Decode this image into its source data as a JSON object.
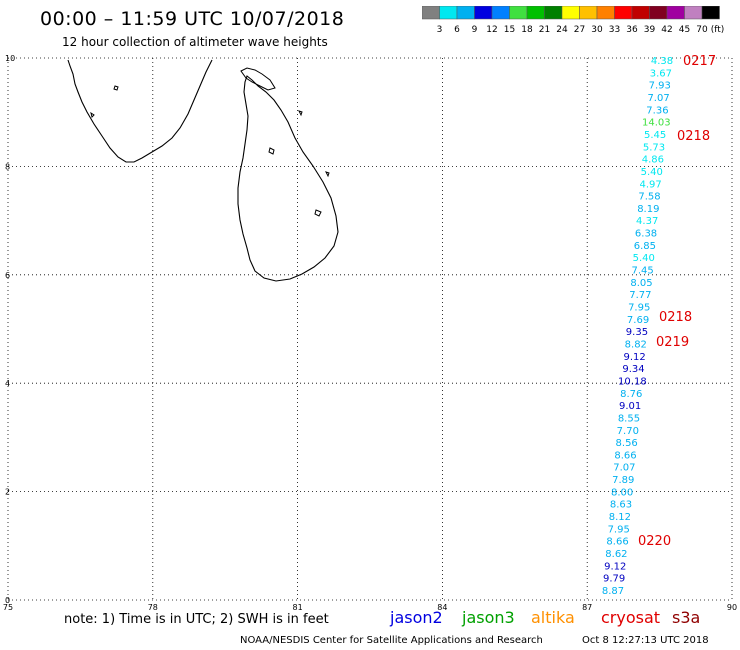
{
  "header": {
    "title": "00:00 – 11:59 UTC 10/07/2018",
    "subtitle": "12 hour collection of altimeter wave heights"
  },
  "colorbar": {
    "colors": [
      "#808080",
      "#00e8f0",
      "#00b0f0",
      "#0000e0",
      "#0080ff",
      "#40e040",
      "#00c000",
      "#008000",
      "#ffff00",
      "#ffc000",
      "#ff8000",
      "#ff0000",
      "#c00000",
      "#800020",
      "#a000a0",
      "#c080c0",
      "#000000"
    ],
    "labels": [
      "3",
      "6",
      "9",
      "12",
      "15",
      "18",
      "21",
      "24",
      "27",
      "30",
      "33",
      "36",
      "39",
      "42",
      "45",
      "70"
    ],
    "unit": "(ft)"
  },
  "map": {
    "lon_range": [
      75,
      90
    ],
    "lat_range": [
      0,
      10
    ],
    "x_ticks": [
      "75",
      "78",
      "81",
      "84",
      "87",
      "90"
    ],
    "y_ticks": [
      "0",
      "2",
      "4",
      "6",
      "8",
      "10"
    ],
    "grid": "dotted",
    "coastline": "Sri Lanka and southern India",
    "track_points": [
      {
        "label": "4.38",
        "color": "#00e8f0"
      },
      {
        "label": "3.67",
        "color": "#00e8f0"
      },
      {
        "label": "7.93",
        "color": "#00b0f0"
      },
      {
        "label": "7.07",
        "color": "#00b0f0"
      },
      {
        "label": "7.36",
        "color": "#00b0f0"
      },
      {
        "label": "14.03",
        "color": "#40e040"
      },
      {
        "label": "5.45",
        "color": "#00e8f0"
      },
      {
        "label": "5.73",
        "color": "#00e8f0"
      },
      {
        "label": "4.86",
        "color": "#00e8f0"
      },
      {
        "label": "5.40",
        "color": "#00e8f0"
      },
      {
        "label": "4.97",
        "color": "#00e8f0"
      },
      {
        "label": "7.58",
        "color": "#00b0f0"
      },
      {
        "label": "8.19",
        "color": "#00b0f0"
      },
      {
        "label": "4.37",
        "color": "#00e8f0"
      },
      {
        "label": "6.38",
        "color": "#00b0f0"
      },
      {
        "label": "6.85",
        "color": "#00b0f0"
      },
      {
        "label": "5.40",
        "color": "#00e8f0"
      },
      {
        "label": "7.45",
        "color": "#00b0f0"
      },
      {
        "label": "8.05",
        "color": "#00b0f0"
      },
      {
        "label": "7.77",
        "color": "#00b0f0"
      },
      {
        "label": "7.95",
        "color": "#00b0f0"
      },
      {
        "label": "7.69",
        "color": "#00b0f0"
      },
      {
        "label": "9.35",
        "color": "#0000c0"
      },
      {
        "label": "8.82",
        "color": "#00b0f0"
      },
      {
        "label": "9.12",
        "color": "#0000c0"
      },
      {
        "label": "9.34",
        "color": "#0000c0"
      },
      {
        "label": "10.18",
        "color": "#0000c0"
      },
      {
        "label": "8.76",
        "color": "#00b0f0"
      },
      {
        "label": "9.01",
        "color": "#0000c0"
      },
      {
        "label": "8.55",
        "color": "#00b0f0"
      },
      {
        "label": "7.70",
        "color": "#00b0f0"
      },
      {
        "label": "8.56",
        "color": "#00b0f0"
      },
      {
        "label": "8.66",
        "color": "#00b0f0"
      },
      {
        "label": "7.07",
        "color": "#00b0f0"
      },
      {
        "label": "7.89",
        "color": "#00b0f0"
      },
      {
        "label": "8.00",
        "color": "#00b0f0"
      },
      {
        "label": "8.63",
        "color": "#00b0f0"
      },
      {
        "label": "8.12",
        "color": "#00b0f0"
      },
      {
        "label": "7.95",
        "color": "#00b0f0"
      },
      {
        "label": "8.66",
        "color": "#00b0f0"
      },
      {
        "label": "8.62",
        "color": "#00b0f0"
      },
      {
        "label": "9.12",
        "color": "#0000c0"
      },
      {
        "label": "9.79",
        "color": "#0000c0"
      },
      {
        "label": "8.87",
        "color": "#00b0f0"
      }
    ],
    "time_labels": [
      "0217",
      "0218",
      "0218",
      "0219",
      "0220"
    ]
  },
  "footer": {
    "note": "note: 1) Time is in UTC; 2) SWH is in feet",
    "satellites": [
      {
        "name": "jason2",
        "color": "#0000e0"
      },
      {
        "name": "jason3",
        "color": "#00a000"
      },
      {
        "name": "altika",
        "color": "#ff9000"
      },
      {
        "name": "cryosat",
        "color": "#e00000"
      },
      {
        "name": "s3a",
        "color": "#900000"
      }
    ],
    "credit": "NOAA/NESDIS Center for Satellite Applications and Research",
    "timestamp": "Oct 8 12:27:13 UTC 2018"
  }
}
